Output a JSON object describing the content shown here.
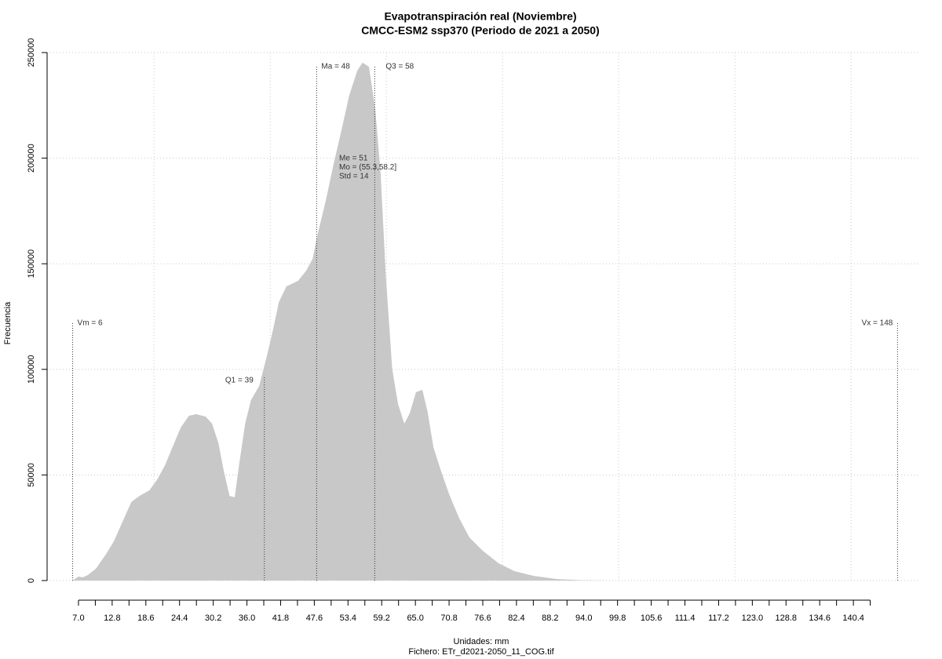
{
  "chart_data": {
    "type": "area",
    "title": "Evapotranspiración real (Noviembre)",
    "subtitle": "CMCC-ESM2 ssp370 (Periodo de 2021 a 2050)",
    "xlabel": "Unidades: mm",
    "caption": "Fichero: ETr_d2021-2050_11_COG.tif",
    "ylabel": "Frecuencia",
    "color": "#c8c8c8",
    "x": [
      6,
      7,
      7.7,
      8.6,
      10,
      11.7,
      13.1,
      14.4,
      16.1,
      17.5,
      19.2,
      20.5,
      21.9,
      23.2,
      24.6,
      26,
      27.3,
      28.9,
      30,
      31.1,
      32,
      33,
      33.9,
      34.7,
      35.7,
      36.7,
      38.1,
      39.4,
      40.5,
      41.5,
      42.8,
      44.8,
      46.2,
      47.3,
      48.2,
      49.6,
      50.9,
      52.3,
      53.6,
      55,
      55.9,
      57,
      58.1,
      59,
      59.9,
      61,
      62,
      63.1,
      64,
      65.1,
      66.2,
      67.1,
      68.1,
      69.4,
      70.8,
      72.5,
      74.3,
      76.6,
      79.3,
      82,
      85.4,
      89.4,
      93.5,
      99,
      148
    ],
    "values": [
      0,
      1900,
      1500,
      2600,
      5600,
      12300,
      18600,
      26700,
      37200,
      40100,
      42700,
      47600,
      54600,
      63200,
      72400,
      78000,
      78800,
      77600,
      74300,
      65000,
      52000,
      40100,
      39400,
      55700,
      74300,
      85400,
      92100,
      105900,
      118900,
      131900,
      139300,
      141900,
      146700,
      152300,
      164200,
      180200,
      196900,
      213600,
      229600,
      241500,
      245200,
      243300,
      222900,
      193200,
      144900,
      100300,
      83600,
      74300,
      79100,
      89200,
      90300,
      79900,
      63200,
      52000,
      40900,
      29700,
      20400,
      14100,
      8200,
      4500,
      2200,
      700,
      200,
      0,
      0
    ],
    "xlim": [
      1.6,
      151.6
    ],
    "ylim": [
      0,
      250000
    ],
    "xticks": [
      {
        "value": 7.0,
        "label": "7.0"
      },
      12.8,
      18.6,
      24.4,
      30.2,
      {
        "value": 36.0,
        "label": "36.0"
      },
      41.8,
      47.6,
      53.4,
      59.2,
      {
        "value": 65.0,
        "label": "65.0"
      },
      70.8,
      76.6,
      82.4,
      88.2,
      {
        "value": 94.0,
        "label": "94.0"
      },
      99.8,
      105.6,
      111.4,
      117.2,
      {
        "value": 123.0,
        "label": "123.0"
      },
      128.8,
      134.6,
      140.4
    ],
    "xminorticks": [
      9.9,
      15.7,
      21.5,
      27.3,
      33.1,
      38.9,
      44.7,
      50.5,
      56.3,
      62.1,
      67.9,
      73.7,
      79.5,
      85.3,
      91.1,
      96.9,
      102.7,
      108.5,
      114.3,
      120.1,
      125.9,
      131.7,
      137.5,
      143.3
    ],
    "xgrid": [
      20,
      40,
      60,
      80,
      100,
      120,
      140
    ],
    "yticks": [
      0,
      50000,
      100000,
      150000,
      200000,
      250000
    ],
    "grid": true,
    "annotations": [
      {
        "label": "Vm = 6",
        "x": 6,
        "y": 121900
      },
      {
        "label": "Q1 = 39",
        "x": 39,
        "y": 97000
      },
      {
        "label": "Ma = 48",
        "x": 48,
        "y": 243300
      },
      {
        "label": "Q3 = 58",
        "x": 58,
        "y": 243300
      },
      {
        "label": "Vx = 148",
        "x": 148,
        "y": 121900
      }
    ],
    "stats": [
      "Me = 51",
      "Mo = (55.3,58.2]",
      "Std = 14"
    ]
  }
}
